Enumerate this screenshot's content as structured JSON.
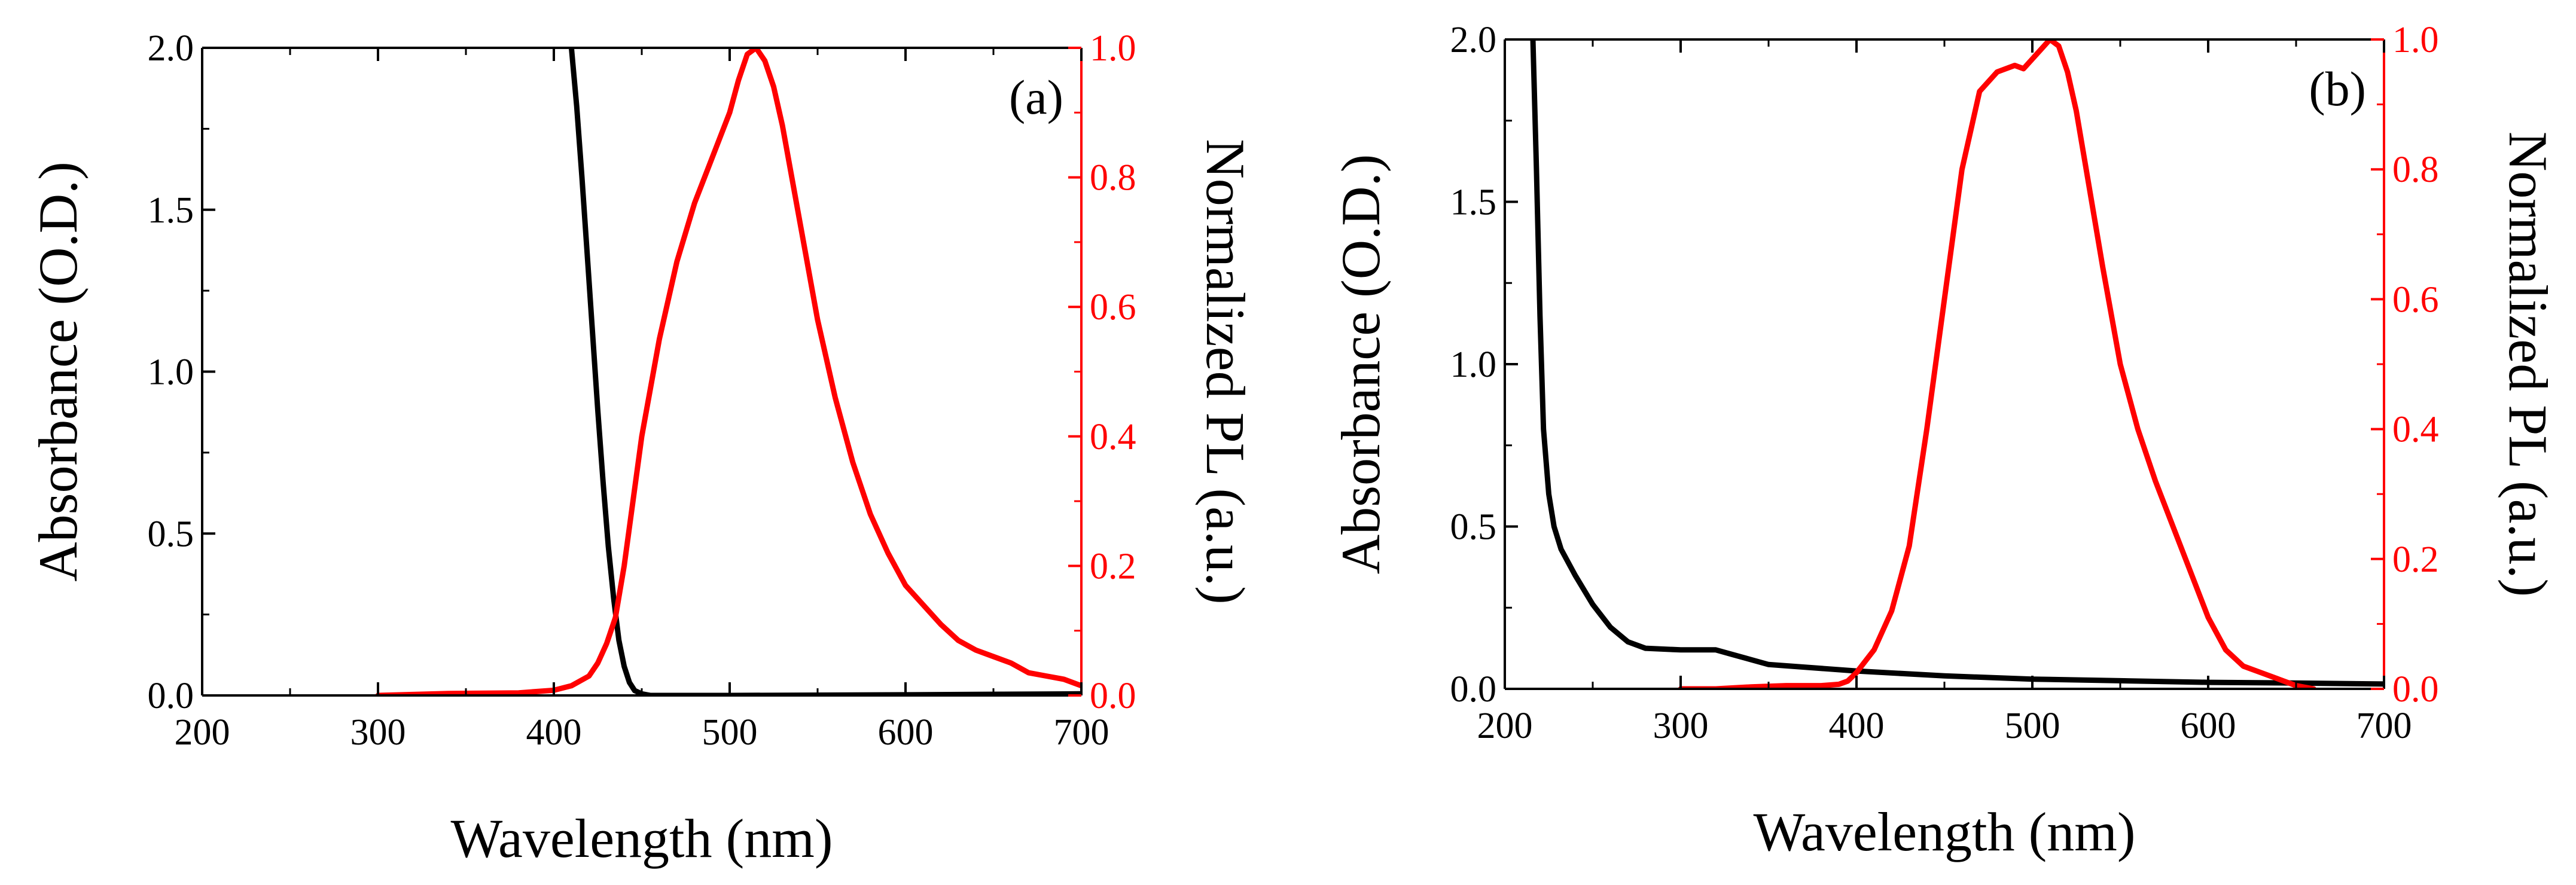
{
  "chart_data": [
    {
      "type": "line",
      "panel_label": "(a)",
      "xlabel": "Wavelength (nm)",
      "ylabel": "Absorbance (O.D.)",
      "y2label": "Normalized PL (a.u.)",
      "xlim": [
        200,
        700
      ],
      "ylim": [
        0,
        2.0
      ],
      "y2lim": [
        0,
        1.0
      ],
      "xticks": [
        "200",
        "300",
        "400",
        "500",
        "600",
        "700"
      ],
      "yticks": [
        "0.0",
        "0.5",
        "1.0",
        "1.5",
        "2.0"
      ],
      "y2ticks": [
        "0.0",
        "0.2",
        "0.4",
        "0.6",
        "0.8",
        "1.0"
      ],
      "grid": false,
      "series": [
        {
          "axis": "left",
          "color": "#000000",
          "x": [
            410,
            413,
            416,
            419,
            422,
            425,
            428,
            431,
            434,
            437,
            440,
            443,
            446,
            450,
            455,
            465,
            500,
            600,
            700
          ],
          "y": [
            2.0,
            1.82,
            1.6,
            1.36,
            1.12,
            0.88,
            0.66,
            0.46,
            0.3,
            0.17,
            0.09,
            0.04,
            0.015,
            0.005,
            0.0,
            0.0,
            0.0,
            0.002,
            0.005
          ]
        },
        {
          "axis": "right",
          "color": "#ff0000",
          "x": [
            300,
            340,
            380,
            400,
            410,
            420,
            425,
            430,
            435,
            440,
            445,
            450,
            460,
            470,
            480,
            490,
            500,
            505,
            510,
            515,
            520,
            525,
            530,
            540,
            550,
            560,
            570,
            580,
            590,
            600,
            610,
            620,
            630,
            640,
            650,
            660,
            670,
            680,
            690,
            700
          ],
          "y": [
            0.0,
            0.003,
            0.004,
            0.008,
            0.015,
            0.03,
            0.05,
            0.08,
            0.12,
            0.2,
            0.3,
            0.4,
            0.55,
            0.67,
            0.76,
            0.83,
            0.9,
            0.95,
            0.99,
            1.0,
            0.98,
            0.94,
            0.88,
            0.73,
            0.58,
            0.46,
            0.36,
            0.28,
            0.22,
            0.17,
            0.14,
            0.11,
            0.085,
            0.07,
            0.06,
            0.05,
            0.035,
            0.03,
            0.025,
            0.015
          ]
        }
      ]
    },
    {
      "type": "line",
      "panel_label": "(b)",
      "xlabel": "Wavelength (nm)",
      "ylabel": "Absorbance (O.D.)",
      "y2label": "Normalized PL (a.u.)",
      "xlim": [
        200,
        700
      ],
      "ylim": [
        0,
        2.0
      ],
      "y2lim": [
        0,
        1.0
      ],
      "xticks": [
        "200",
        "300",
        "400",
        "500",
        "600",
        "700"
      ],
      "yticks": [
        "0.0",
        "0.5",
        "1.0",
        "1.5",
        "2.0"
      ],
      "y2ticks": [
        "0.0",
        "0.2",
        "0.4",
        "0.6",
        "0.8",
        "1.0"
      ],
      "grid": false,
      "series": [
        {
          "axis": "left",
          "color": "#000000",
          "x": [
            216,
            218,
            220,
            222,
            225,
            228,
            232,
            240,
            250,
            260,
            270,
            280,
            300,
            320,
            330,
            350,
            400,
            450,
            500,
            550,
            600,
            650,
            700
          ],
          "y": [
            2.0,
            1.6,
            1.15,
            0.8,
            0.6,
            0.5,
            0.43,
            0.35,
            0.26,
            0.19,
            0.145,
            0.125,
            0.12,
            0.12,
            0.105,
            0.075,
            0.055,
            0.04,
            0.03,
            0.025,
            0.02,
            0.018,
            0.015
          ]
        },
        {
          "axis": "right",
          "color": "#ff0000",
          "x": [
            300,
            320,
            340,
            360,
            380,
            390,
            395,
            400,
            410,
            420,
            430,
            440,
            450,
            460,
            470,
            480,
            490,
            495,
            500,
            505,
            510,
            515,
            520,
            525,
            530,
            540,
            550,
            560,
            570,
            580,
            590,
            600,
            610,
            620,
            630,
            640,
            650,
            660
          ],
          "y": [
            0.0,
            0.0,
            0.003,
            0.005,
            0.005,
            0.007,
            0.012,
            0.025,
            0.06,
            0.12,
            0.22,
            0.4,
            0.6,
            0.8,
            0.92,
            0.95,
            0.96,
            0.955,
            0.97,
            0.985,
            1.0,
            0.99,
            0.95,
            0.89,
            0.81,
            0.65,
            0.5,
            0.4,
            0.32,
            0.25,
            0.18,
            0.11,
            0.06,
            0.035,
            0.025,
            0.015,
            0.005,
            0.0
          ]
        }
      ]
    }
  ]
}
